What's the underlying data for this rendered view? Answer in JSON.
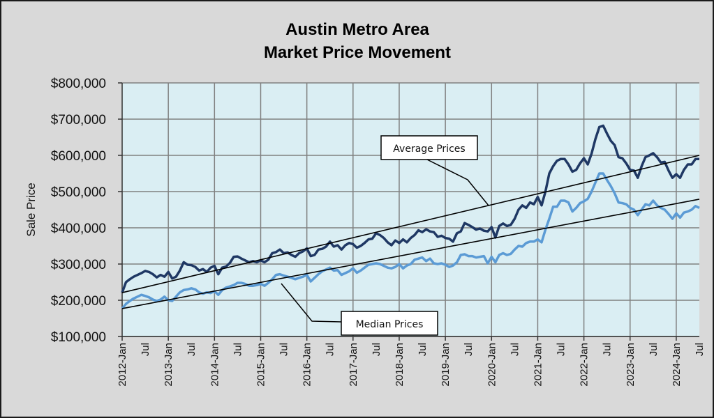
{
  "chart_data": {
    "type": "line",
    "title": [
      "Austin Metro Area",
      "Market Price Movement"
    ],
    "xlabel": "",
    "ylabel": "Sale Price",
    "ylim": [
      100000,
      800000
    ],
    "yticks": [
      100000,
      200000,
      300000,
      400000,
      500000,
      600000,
      700000,
      800000
    ],
    "ytick_labels": [
      "$100,000",
      "$200,000",
      "$300,000",
      "$400,000",
      "$500,000",
      "$600,000",
      "$700,000",
      "$800,000"
    ],
    "x_start": "2012-Jan",
    "x_end": "2024-Jul",
    "x_months": 151,
    "xtick_labels": [
      "2012-Jan",
      "Jul",
      "2013-Jan",
      "Jul",
      "2014-Jan",
      "Jul",
      "2015-Jan",
      "Jul",
      "2016-Jan",
      "Jul",
      "2017-Jan",
      "Jul",
      "2018-Jan",
      "Jul",
      "2019-Jan",
      "Jul",
      "2020-Jan",
      "Jul",
      "2021-Jan",
      "Jul",
      "2022-Jan",
      "Jul",
      "2023-Jan",
      "Jul",
      "2024-Jan",
      "Jul"
    ],
    "grid": true,
    "series": [
      {
        "name": "Average Prices",
        "color": "#1f3864",
        "values": [
          221000,
          250000,
          258000,
          265000,
          270000,
          275000,
          281000,
          278000,
          272000,
          263000,
          270000,
          265000,
          278000,
          260000,
          265000,
          282000,
          305000,
          298000,
          297000,
          292000,
          282000,
          286000,
          278000,
          290000,
          295000,
          272000,
          290000,
          293000,
          303000,
          320000,
          321000,
          315000,
          310000,
          305000,
          308000,
          305000,
          310000,
          305000,
          312000,
          330000,
          333000,
          340000,
          330000,
          332000,
          325000,
          320000,
          330000,
          335000,
          343000,
          322000,
          325000,
          340000,
          342000,
          348000,
          362000,
          348000,
          352000,
          340000,
          352000,
          358000,
          355000,
          345000,
          350000,
          358000,
          368000,
          370000,
          385000,
          380000,
          372000,
          360000,
          352000,
          365000,
          358000,
          368000,
          360000,
          372000,
          380000,
          393000,
          388000,
          396000,
          390000,
          388000,
          375000,
          378000,
          372000,
          370000,
          362000,
          385000,
          390000,
          413000,
          408000,
          402000,
          395000,
          398000,
          392000,
          390000,
          402000,
          373000,
          405000,
          412000,
          405000,
          408000,
          425000,
          450000,
          462000,
          455000,
          470000,
          465000,
          485000,
          462000,
          500000,
          550000,
          570000,
          585000,
          590000,
          590000,
          575000,
          555000,
          560000,
          578000,
          592000,
          575000,
          605000,
          645000,
          678000,
          682000,
          660000,
          640000,
          628000,
          595000,
          592000,
          578000,
          560000,
          558000,
          538000,
          570000,
          595000,
          600000,
          606000,
          595000,
          580000,
          582000,
          558000,
          538000,
          548000,
          538000,
          560000,
          575000,
          575000,
          590000,
          590000
        ]
      },
      {
        "name": "Median Prices",
        "color": "#5b9bd5",
        "values": [
          177000,
          190000,
          198000,
          205000,
          210000,
          215000,
          212000,
          208000,
          202000,
          198000,
          202000,
          210000,
          200000,
          198000,
          210000,
          222000,
          228000,
          230000,
          233000,
          230000,
          222000,
          218000,
          222000,
          220000,
          225000,
          215000,
          228000,
          235000,
          238000,
          242000,
          248000,
          248000,
          245000,
          240000,
          240000,
          242000,
          245000,
          240000,
          248000,
          258000,
          270000,
          272000,
          268000,
          265000,
          262000,
          258000,
          262000,
          265000,
          270000,
          252000,
          262000,
          272000,
          280000,
          285000,
          290000,
          282000,
          283000,
          270000,
          275000,
          280000,
          288000,
          276000,
          282000,
          290000,
          298000,
          300000,
          302000,
          300000,
          295000,
          290000,
          288000,
          292000,
          300000,
          288000,
          296000,
          300000,
          312000,
          315000,
          318000,
          308000,
          315000,
          302000,
          300000,
          302000,
          298000,
          292000,
          296000,
          305000,
          325000,
          327000,
          322000,
          322000,
          318000,
          320000,
          322000,
          302000,
          320000,
          305000,
          325000,
          330000,
          325000,
          328000,
          340000,
          350000,
          348000,
          358000,
          362000,
          362000,
          368000,
          360000,
          395000,
          425000,
          458000,
          458000,
          475000,
          475000,
          470000,
          445000,
          455000,
          468000,
          473000,
          480000,
          500000,
          525000,
          550000,
          550000,
          532000,
          515000,
          495000,
          470000,
          468000,
          465000,
          455000,
          450000,
          435000,
          450000,
          465000,
          462000,
          475000,
          462000,
          455000,
          450000,
          438000,
          425000,
          440000,
          428000,
          442000,
          445000,
          450000,
          460000,
          455000
        ]
      }
    ],
    "trendlines": [
      {
        "name": "Average Prices trend",
        "start_value": 221000,
        "end_value": 600000
      },
      {
        "name": "Median Prices trend",
        "start_value": 177000,
        "end_value": 479000
      }
    ],
    "annotations": [
      {
        "text": "Average Prices",
        "target": "Average Prices trend"
      },
      {
        "text": "Median Prices",
        "target": "Median Prices trend"
      }
    ],
    "colors": {
      "plot_background": "#daeef3",
      "chart_background": "#d9d9d9",
      "gridline": "#808080",
      "trendline": "#000000"
    }
  }
}
